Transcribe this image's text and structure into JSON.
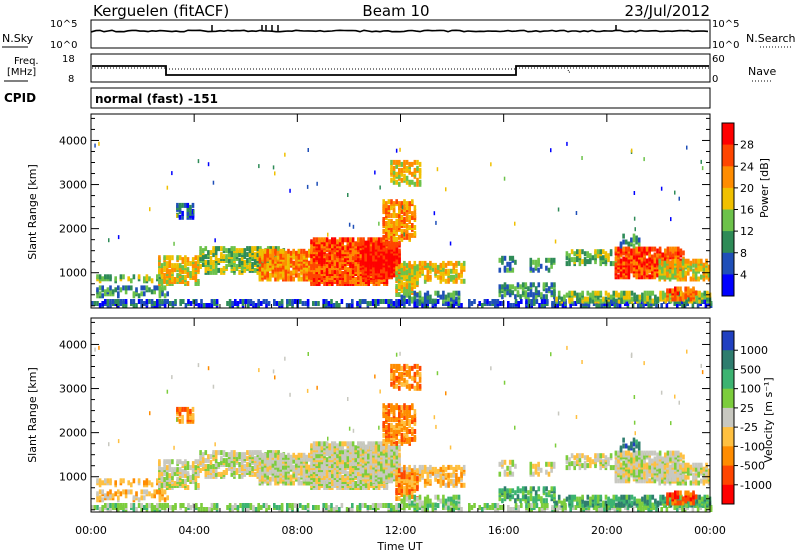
{
  "header": {
    "station": "Kerguelen (fitACF)",
    "beam": "Beam 10",
    "date": "23/Jul/2012"
  },
  "sky_panel": {
    "left_label": "N.Sky",
    "right_label": "N.Search",
    "left_ticks": [
      "10^5",
      "10^0"
    ],
    "right_ticks": [
      "10^5",
      "10^0"
    ]
  },
  "freq_panel": {
    "left_label_1": "Freq.",
    "left_label_2": "[MHz]",
    "right_label": "Nave",
    "left_ticks": [
      "18",
      "8"
    ],
    "right_ticks": [
      "60",
      "0"
    ]
  },
  "cpid": {
    "label": "CPID",
    "value": "normal (fast) -151"
  },
  "chart_data": [
    {
      "type": "heatmap",
      "name": "power",
      "ylabel": "Slant Range [km]",
      "yticks": [
        "1000",
        "2000",
        "3000",
        "4000"
      ],
      "ylim": [
        200,
        4600
      ],
      "colorbar_label": "Power [dB]",
      "colorbar_ticks": [
        "4",
        "8",
        "12",
        "16",
        "20",
        "24",
        "28"
      ],
      "colors": [
        "#0000ff",
        "#1f4fb8",
        "#2e8b57",
        "#6cc24a",
        "#f0c000",
        "#ff8c00",
        "#ff4500",
        "#ff0000"
      ]
    },
    {
      "type": "heatmap",
      "name": "velocity",
      "ylabel": "Slant Range [km]",
      "yticks": [
        "1000",
        "2000",
        "3000",
        "4000"
      ],
      "ylim": [
        200,
        4600
      ],
      "colorbar_label": "Velocity [m s⁻¹]",
      "colorbar_ticks": [
        "1000",
        "500",
        "100",
        "25",
        "-25",
        "-100",
        "-500",
        "-1000"
      ],
      "colors": [
        "#2040c0",
        "#2e7d6e",
        "#3cb371",
        "#7ccd3c",
        "#c8c8c0",
        "#ffc040",
        "#ff8c00",
        "#ff4500",
        "#ff0000"
      ]
    }
  ],
  "x_axis": {
    "label": "Time UT",
    "ticks": [
      "00:00",
      "04:00",
      "08:00",
      "12:00",
      "16:00",
      "20:00",
      "00:00"
    ]
  }
}
